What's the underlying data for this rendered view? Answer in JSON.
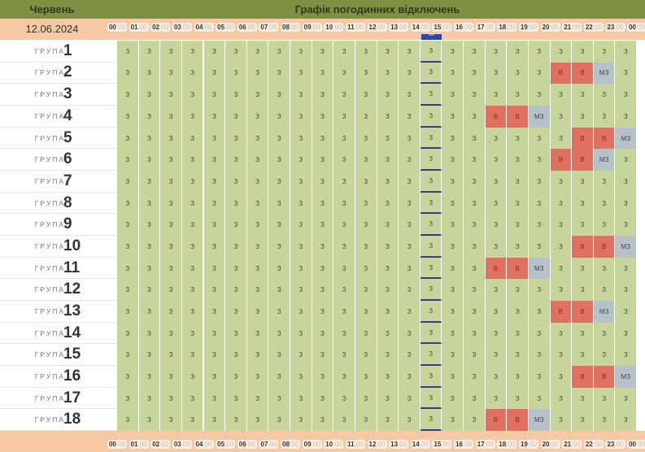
{
  "header": {
    "month": "Червень",
    "title": "Графік погодинних відключень",
    "date": "12.06.2024",
    "now_marker": "***"
  },
  "hours": [
    "00",
    "01",
    "02",
    "03",
    "04",
    "05",
    "06",
    "07",
    "08",
    "09",
    "10",
    "11",
    "12",
    "13",
    "14",
    "15",
    "16",
    "17",
    "18",
    "19",
    "20",
    "21",
    "22",
    "23",
    "00"
  ],
  "minutes_suffix": ":00",
  "current_hour_index": 14,
  "group_word": "ГРУПА",
  "legend": {
    "З": "on",
    "В": "off",
    "МЗ": "maybe"
  },
  "colors": {
    "header": "#7d9044",
    "hours_row": "#f6c9a4",
    "on": "#c6d69b",
    "off": "#e0705f",
    "maybe": "#b6c2c9",
    "current": "#2f3e86"
  },
  "groups": [
    {
      "n": "1",
      "cells": [
        "З",
        "З",
        "З",
        "З",
        "З",
        "З",
        "З",
        "З",
        "З",
        "З",
        "З",
        "З",
        "З",
        "З",
        "З",
        "З",
        "З",
        "З",
        "З",
        "З",
        "З",
        "З",
        "З",
        "З"
      ]
    },
    {
      "n": "2",
      "cells": [
        "З",
        "З",
        "З",
        "З",
        "З",
        "З",
        "З",
        "З",
        "З",
        "З",
        "З",
        "З",
        "З",
        "З",
        "З",
        "З",
        "З",
        "З",
        "З",
        "З",
        "В",
        "В",
        "МЗ",
        "З"
      ]
    },
    {
      "n": "3",
      "cells": [
        "З",
        "З",
        "З",
        "З",
        "З",
        "З",
        "З",
        "З",
        "З",
        "З",
        "З",
        "З",
        "З",
        "З",
        "З",
        "З",
        "З",
        "З",
        "З",
        "З",
        "З",
        "З",
        "З",
        "З"
      ]
    },
    {
      "n": "4",
      "cells": [
        "З",
        "З",
        "З",
        "З",
        "З",
        "З",
        "З",
        "З",
        "З",
        "З",
        "З",
        "З",
        "З",
        "З",
        "З",
        "З",
        "З",
        "В",
        "В",
        "МЗ",
        "З",
        "З",
        "З",
        "З"
      ]
    },
    {
      "n": "5",
      "cells": [
        "З",
        "З",
        "З",
        "З",
        "З",
        "З",
        "З",
        "З",
        "З",
        "З",
        "З",
        "З",
        "З",
        "З",
        "З",
        "З",
        "З",
        "З",
        "З",
        "З",
        "З",
        "В",
        "В",
        "МЗ"
      ]
    },
    {
      "n": "6",
      "cells": [
        "З",
        "З",
        "З",
        "З",
        "З",
        "З",
        "З",
        "З",
        "З",
        "З",
        "З",
        "З",
        "З",
        "З",
        "З",
        "З",
        "З",
        "З",
        "З",
        "З",
        "В",
        "В",
        "МЗ",
        "З"
      ]
    },
    {
      "n": "7",
      "cells": [
        "З",
        "З",
        "З",
        "З",
        "З",
        "З",
        "З",
        "З",
        "З",
        "З",
        "З",
        "З",
        "З",
        "З",
        "З",
        "З",
        "З",
        "З",
        "З",
        "З",
        "З",
        "З",
        "З",
        "З"
      ]
    },
    {
      "n": "8",
      "cells": [
        "З",
        "З",
        "З",
        "З",
        "З",
        "З",
        "З",
        "З",
        "З",
        "З",
        "З",
        "З",
        "З",
        "З",
        "З",
        "З",
        "З",
        "З",
        "З",
        "З",
        "З",
        "З",
        "З",
        "З"
      ]
    },
    {
      "n": "9",
      "cells": [
        "З",
        "З",
        "З",
        "З",
        "З",
        "З",
        "З",
        "З",
        "З",
        "З",
        "З",
        "З",
        "З",
        "З",
        "З",
        "З",
        "З",
        "З",
        "З",
        "З",
        "З",
        "З",
        "З",
        "З"
      ]
    },
    {
      "n": "10",
      "cells": [
        "З",
        "З",
        "З",
        "З",
        "З",
        "З",
        "З",
        "З",
        "З",
        "З",
        "З",
        "З",
        "З",
        "З",
        "З",
        "З",
        "З",
        "З",
        "З",
        "З",
        "З",
        "В",
        "В",
        "МЗ"
      ]
    },
    {
      "n": "11",
      "cells": [
        "З",
        "З",
        "З",
        "З",
        "З",
        "З",
        "З",
        "З",
        "З",
        "З",
        "З",
        "З",
        "З",
        "З",
        "З",
        "З",
        "З",
        "В",
        "В",
        "МЗ",
        "З",
        "З",
        "З",
        "З"
      ]
    },
    {
      "n": "12",
      "cells": [
        "З",
        "З",
        "З",
        "З",
        "З",
        "З",
        "З",
        "З",
        "З",
        "З",
        "З",
        "З",
        "З",
        "З",
        "З",
        "З",
        "З",
        "З",
        "З",
        "З",
        "З",
        "З",
        "З",
        "З"
      ]
    },
    {
      "n": "13",
      "cells": [
        "З",
        "З",
        "З",
        "З",
        "З",
        "З",
        "З",
        "З",
        "З",
        "З",
        "З",
        "З",
        "З",
        "З",
        "З",
        "З",
        "З",
        "З",
        "З",
        "З",
        "В",
        "В",
        "МЗ",
        "З"
      ]
    },
    {
      "n": "14",
      "cells": [
        "З",
        "З",
        "З",
        "З",
        "З",
        "З",
        "З",
        "З",
        "З",
        "З",
        "З",
        "З",
        "З",
        "З",
        "З",
        "З",
        "З",
        "З",
        "З",
        "З",
        "З",
        "З",
        "З",
        "З"
      ]
    },
    {
      "n": "15",
      "cells": [
        "З",
        "З",
        "З",
        "З",
        "З",
        "З",
        "З",
        "З",
        "З",
        "З",
        "З",
        "З",
        "З",
        "З",
        "З",
        "З",
        "З",
        "З",
        "З",
        "З",
        "З",
        "З",
        "З",
        "З"
      ]
    },
    {
      "n": "16",
      "cells": [
        "З",
        "З",
        "З",
        "З",
        "З",
        "З",
        "З",
        "З",
        "З",
        "З",
        "З",
        "З",
        "З",
        "З",
        "З",
        "З",
        "З",
        "З",
        "З",
        "З",
        "З",
        "В",
        "В",
        "МЗ"
      ]
    },
    {
      "n": "17",
      "cells": [
        "З",
        "З",
        "З",
        "З",
        "З",
        "З",
        "З",
        "З",
        "З",
        "З",
        "З",
        "З",
        "З",
        "З",
        "З",
        "З",
        "З",
        "З",
        "З",
        "З",
        "З",
        "З",
        "З",
        "З"
      ]
    },
    {
      "n": "18",
      "cells": [
        "З",
        "З",
        "З",
        "З",
        "З",
        "З",
        "З",
        "З",
        "З",
        "З",
        "З",
        "З",
        "З",
        "З",
        "З",
        "З",
        "З",
        "В",
        "В",
        "МЗ",
        "З",
        "З",
        "З",
        "З"
      ]
    }
  ]
}
